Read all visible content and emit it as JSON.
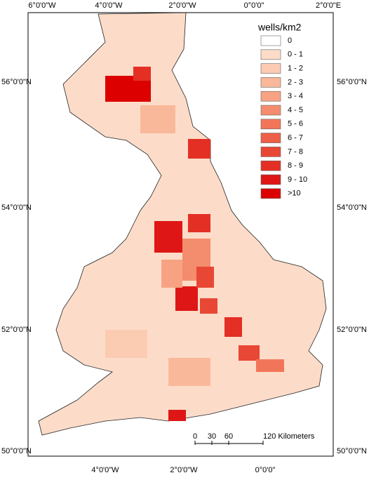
{
  "map": {
    "graticule": {
      "top": [
        "6°0'0\"W",
        "4°0'0\"W",
        "2°0'0\"W",
        "0°0'0\"",
        "2°0'0\"E"
      ],
      "bottom": [
        "4°0'0\"W",
        "2°0'0\"W",
        "0°0'0\""
      ],
      "left": [
        "56°0'0\"N",
        "54°0'0\"N",
        "52°0'0\"N",
        "50°0'0\"N"
      ],
      "right": [
        "56°0'0\"N",
        "54°0'0\"N",
        "52°0'0\"N",
        "50°0'0\"N"
      ]
    },
    "legend": {
      "title": "wells/km2",
      "items": [
        {
          "label": "0",
          "color": "#ffffff"
        },
        {
          "label": "0 - 1",
          "color": "#fcdcc8"
        },
        {
          "label": "1 - 2",
          "color": "#fbcbb2"
        },
        {
          "label": "2 - 3",
          "color": "#f9b89a"
        },
        {
          "label": "3 - 4",
          "color": "#f7a383"
        },
        {
          "label": "4 - 5",
          "color": "#f48d6d"
        },
        {
          "label": "5 - 6",
          "color": "#f17659"
        },
        {
          "label": "6 - 7",
          "color": "#ed5f46"
        },
        {
          "label": "7 - 8",
          "color": "#e94735"
        },
        {
          "label": "8 - 9",
          "color": "#e42f25"
        },
        {
          "label": "9 - 10",
          "color": "#de1716"
        },
        {
          "label": ">10",
          "color": "#dc0000"
        }
      ]
    },
    "scale_bar": {
      "labels": [
        "0",
        "30",
        "60",
        "120 Kilometers"
      ]
    }
  }
}
